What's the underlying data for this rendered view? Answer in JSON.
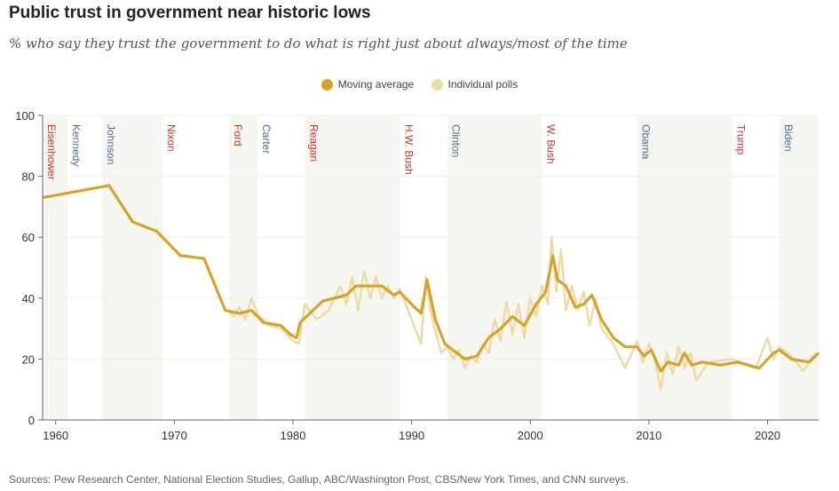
{
  "title": "Public trust in government near historic lows",
  "subtitle": "% who say they trust the government to do what is right just about always/most of the time",
  "source": "Sources: Pew Research Center, National Election Studies, Gallup, ABC/Washington Post, CBS/New York Times, and CNN surveys.",
  "colors": {
    "moving": "#d4a42a",
    "polls": "#ecdba8",
    "rep": "#c8332e",
    "dem": "#4d6f8f",
    "band": "#f6f6f1"
  },
  "chart_data": {
    "type": "line",
    "xlim": [
      1958.9,
      2024.3
    ],
    "ylim": [
      0,
      100
    ],
    "xticks": [
      1960,
      1970,
      1980,
      1990,
      2000,
      2010,
      2020
    ],
    "yticks": [
      0,
      20,
      40,
      60,
      80,
      100
    ],
    "legend": [
      "Moving average",
      "Individual polls"
    ],
    "legend_position": "top-center",
    "presidents": [
      {
        "name": "Eisenhower",
        "start": 1958.9,
        "end": 1961,
        "party": "rep",
        "shaded": true
      },
      {
        "name": "Kennedy",
        "start": 1961,
        "end": 1963.9,
        "party": "dem",
        "shaded": false
      },
      {
        "name": "Johnson",
        "start": 1963.9,
        "end": 1969,
        "party": "dem",
        "shaded": true
      },
      {
        "name": "Nixon",
        "start": 1969,
        "end": 1974.6,
        "party": "rep",
        "shaded": false
      },
      {
        "name": "Ford",
        "start": 1974.6,
        "end": 1977,
        "party": "rep",
        "shaded": true
      },
      {
        "name": "Carter",
        "start": 1977,
        "end": 1981,
        "party": "dem",
        "shaded": false
      },
      {
        "name": "Reagan",
        "start": 1981,
        "end": 1989,
        "party": "rep",
        "shaded": true
      },
      {
        "name": "H.W. Bush",
        "start": 1989,
        "end": 1993,
        "party": "rep",
        "shaded": false
      },
      {
        "name": "Clinton",
        "start": 1993,
        "end": 2001,
        "party": "dem",
        "shaded": true
      },
      {
        "name": "W. Bush",
        "start": 2001,
        "end": 2009,
        "party": "rep",
        "shaded": false
      },
      {
        "name": "Obama",
        "start": 2009,
        "end": 2017,
        "party": "dem",
        "shaded": true
      },
      {
        "name": "Trump",
        "start": 2017,
        "end": 2021,
        "party": "rep",
        "shaded": false
      },
      {
        "name": "Biden",
        "start": 2021,
        "end": 2024.3,
        "party": "dem",
        "shaded": true
      }
    ],
    "series": [
      {
        "name": "Individual polls",
        "points": [
          [
            1974.5,
            36
          ],
          [
            1975,
            34
          ],
          [
            1975.5,
            37
          ],
          [
            1976,
            33
          ],
          [
            1976.5,
            40
          ],
          [
            1977,
            35
          ],
          [
            1977.5,
            33
          ],
          [
            1978,
            31
          ],
          [
            1979,
            30
          ],
          [
            1980,
            26
          ],
          [
            1980.5,
            25
          ],
          [
            1981,
            38
          ],
          [
            1982,
            33
          ],
          [
            1983,
            36
          ],
          [
            1984,
            44
          ],
          [
            1984.5,
            38
          ],
          [
            1985,
            47
          ],
          [
            1985.5,
            36
          ],
          [
            1986,
            49
          ],
          [
            1986.5,
            40
          ],
          [
            1987,
            47
          ],
          [
            1987.5,
            40
          ],
          [
            1988,
            44
          ],
          [
            1988.5,
            40
          ],
          [
            1989,
            43
          ],
          [
            1990,
            33
          ],
          [
            1990.8,
            25
          ],
          [
            1991.2,
            47
          ],
          [
            1991.6,
            36
          ],
          [
            1992,
            29
          ],
          [
            1992.5,
            22
          ],
          [
            1993,
            24
          ],
          [
            1993.5,
            20
          ],
          [
            1994,
            23
          ],
          [
            1994.5,
            17
          ],
          [
            1995,
            21
          ],
          [
            1995.5,
            19
          ],
          [
            1996,
            25
          ],
          [
            1996.5,
            22
          ],
          [
            1997,
            33
          ],
          [
            1997.5,
            26
          ],
          [
            1998,
            39
          ],
          [
            1998.5,
            28
          ],
          [
            1999,
            38
          ],
          [
            1999.5,
            27
          ],
          [
            2000,
            40
          ],
          [
            2000.5,
            34
          ],
          [
            2001,
            44
          ],
          [
            2001.5,
            38
          ],
          [
            2001.8,
            60
          ],
          [
            2002.2,
            42
          ],
          [
            2002.6,
            56
          ],
          [
            2003,
            36
          ],
          [
            2003.5,
            44
          ],
          [
            2004,
            36
          ],
          [
            2004.5,
            42
          ],
          [
            2005,
            31
          ],
          [
            2005.5,
            40
          ],
          [
            2006,
            30
          ],
          [
            2007,
            25
          ],
          [
            2008,
            17
          ],
          [
            2009,
            26
          ],
          [
            2009.5,
            19
          ],
          [
            2010,
            25
          ],
          [
            2010.5,
            20
          ],
          [
            2011,
            10
          ],
          [
            2011.5,
            22
          ],
          [
            2012,
            15
          ],
          [
            2012.5,
            24
          ],
          [
            2013,
            17
          ],
          [
            2013.5,
            22
          ],
          [
            2014,
            13
          ],
          [
            2015,
            19
          ],
          [
            2017,
            20
          ],
          [
            2019,
            17
          ],
          [
            2020,
            27
          ],
          [
            2020.5,
            20
          ],
          [
            2021,
            24
          ],
          [
            2022,
            21
          ],
          [
            2023,
            16
          ],
          [
            2024,
            22
          ]
        ]
      },
      {
        "name": "Moving average",
        "points": [
          [
            1958.9,
            73
          ],
          [
            1964.5,
            77
          ],
          [
            1966.5,
            65
          ],
          [
            1968.5,
            62
          ],
          [
            1970.5,
            54
          ],
          [
            1972.5,
            53
          ],
          [
            1974.3,
            36
          ],
          [
            1975.5,
            35
          ],
          [
            1976.5,
            36
          ],
          [
            1977.5,
            32
          ],
          [
            1979,
            31
          ],
          [
            1979.8,
            28
          ],
          [
            1980.3,
            27
          ],
          [
            1980.6,
            32
          ],
          [
            1982.5,
            39
          ],
          [
            1984.5,
            41
          ],
          [
            1985.3,
            44
          ],
          [
            1986.5,
            44
          ],
          [
            1987.5,
            44
          ],
          [
            1988.5,
            41
          ],
          [
            1989,
            42
          ],
          [
            1990,
            38
          ],
          [
            1990.8,
            35
          ],
          [
            1991.3,
            46
          ],
          [
            1992,
            33
          ],
          [
            1992.8,
            25
          ],
          [
            1993.8,
            22
          ],
          [
            1994.5,
            20
          ],
          [
            1995.5,
            21
          ],
          [
            1996.5,
            27
          ],
          [
            1997.5,
            30
          ],
          [
            1998.5,
            34
          ],
          [
            1999.5,
            31
          ],
          [
            2000.5,
            38
          ],
          [
            2001.3,
            42
          ],
          [
            2001.9,
            54
          ],
          [
            2002.3,
            46
          ],
          [
            2003,
            44
          ],
          [
            2003.8,
            37
          ],
          [
            2004.5,
            38
          ],
          [
            2005.2,
            41
          ],
          [
            2006,
            33
          ],
          [
            2007,
            27
          ],
          [
            2008,
            24
          ],
          [
            2009,
            24
          ],
          [
            2009.6,
            21
          ],
          [
            2010.2,
            23
          ],
          [
            2011,
            16
          ],
          [
            2011.6,
            19
          ],
          [
            2012.5,
            18
          ],
          [
            2013,
            22
          ],
          [
            2013.6,
            18
          ],
          [
            2014.5,
            19
          ],
          [
            2016,
            18
          ],
          [
            2017.5,
            19
          ],
          [
            2019.3,
            17
          ],
          [
            2020.5,
            22
          ],
          [
            2021,
            23
          ],
          [
            2022,
            20
          ],
          [
            2023.5,
            19
          ],
          [
            2024.3,
            22
          ]
        ]
      }
    ]
  }
}
